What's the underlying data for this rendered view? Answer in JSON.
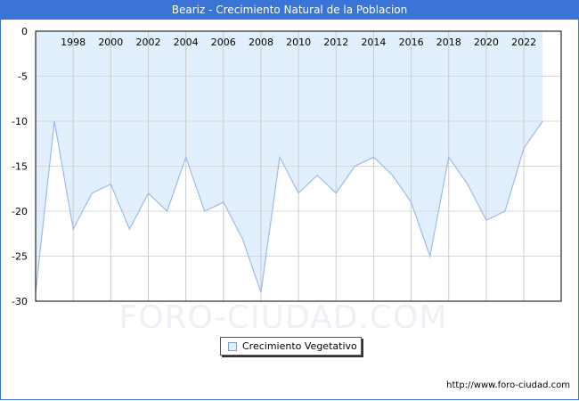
{
  "title": "Beariz - Crecimiento Natural de la Poblacion",
  "legend": {
    "label": "Crecimiento Vegetativo"
  },
  "footer": {
    "url_text": "http://www.foro-ciudad.com"
  },
  "watermark": "FORO-CIUDAD.COM",
  "colors": {
    "title_bar": "#3a74d6",
    "area_fill": "#e2effc",
    "line": "#9dbbe8",
    "grid": "#d8d8d8",
    "frame": "#3a74d6"
  },
  "chart_data": {
    "type": "area",
    "title": "Beariz - Crecimiento Natural de la Poblacion",
    "xlabel": "",
    "ylabel": "",
    "x": [
      1996,
      1997,
      1998,
      1999,
      2000,
      2001,
      2002,
      2003,
      2004,
      2005,
      2006,
      2007,
      2008,
      2009,
      2010,
      2011,
      2012,
      2013,
      2014,
      2015,
      2016,
      2017,
      2018,
      2019,
      2020,
      2021,
      2022,
      2023
    ],
    "series": [
      {
        "name": "Crecimiento Vegetativo",
        "values": [
          -29,
          -10,
          -22,
          -18,
          -17,
          -22,
          -18,
          -20,
          -14,
          -20,
          -19,
          -23,
          -29,
          -14,
          -18,
          -16,
          -18,
          -15,
          -14,
          -16,
          -19,
          -25,
          -14,
          -17,
          -21,
          -20,
          -13,
          -10
        ]
      }
    ],
    "x_tick_labels": [
      "1998",
      "2000",
      "2002",
      "2004",
      "2006",
      "2008",
      "2010",
      "2012",
      "2014",
      "2016",
      "2018",
      "2020",
      "2022"
    ],
    "y_tick_labels": [
      "0",
      "-5",
      "-10",
      "-15",
      "-20",
      "-25",
      "-30"
    ],
    "ylim": [
      -30,
      0
    ],
    "xlim": [
      1996,
      2024
    ],
    "grid": true,
    "legend_position": "bottom-center",
    "x_tick_position": "top-inside"
  }
}
